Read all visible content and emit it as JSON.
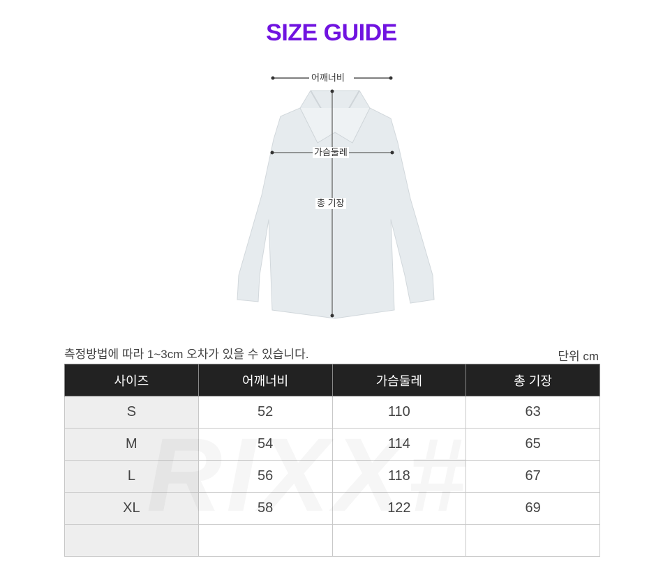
{
  "title": "SIZE GUIDE",
  "figure": {
    "shoulder_label": "어깨너비",
    "chest_label": "가슴둘레",
    "length_label": "총 기장"
  },
  "note": "측정방법에 따라 1~3cm 오차가 있을 수 있습니다.",
  "unit": "단위 cm",
  "table": {
    "headers": [
      "사이즈",
      "어깨너비",
      "가슴둘레",
      "총 기장"
    ],
    "rows": [
      [
        "S",
        "52",
        "110",
        "63"
      ],
      [
        "M",
        "54",
        "114",
        "65"
      ],
      [
        "L",
        "56",
        "118",
        "67"
      ],
      [
        "XL",
        "58",
        "122",
        "69"
      ],
      [
        "",
        "",
        "",
        ""
      ]
    ]
  },
  "watermark": "RIXX#",
  "colors": {
    "title": "#7013e0",
    "header_bg": "#222222",
    "size_col_bg": "#eeeeee"
  }
}
